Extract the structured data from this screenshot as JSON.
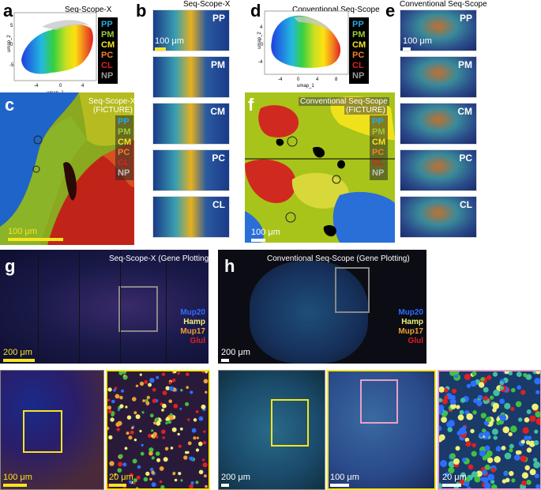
{
  "panels": {
    "a": {
      "label": "a",
      "title": "Seq-Scope-X",
      "xlabel": "umap_1",
      "ylabel": "umap_2",
      "xticks": [
        "-4",
        "0",
        "4"
      ],
      "yticks": [
        "-5",
        "0",
        "5"
      ]
    },
    "b": {
      "label": "b",
      "title": "Seq-Scope-X",
      "scalebar": "100 μm",
      "tiles": [
        "PP",
        "PM",
        "CM",
        "PC",
        "CL"
      ]
    },
    "c": {
      "label": "c",
      "title_line1": "Seq-Scope-X",
      "title_line2": "(FICTURE)",
      "scalebar": "100 μm"
    },
    "d": {
      "label": "d",
      "title": "Conventional Seq-Scope",
      "xlabel": "umap_1",
      "ylabel": "umap_2",
      "xticks": [
        "-4",
        "0",
        "4",
        "8"
      ],
      "yticks": [
        "-4",
        "0",
        "4"
      ]
    },
    "e": {
      "label": "e",
      "title": "Conventional Seq-Scope",
      "scalebar": "100 μm",
      "tiles": [
        "PP",
        "PM",
        "CM",
        "PC",
        "CL"
      ]
    },
    "f": {
      "label": "f",
      "title_line1": "Conventional Seq-Scope",
      "title_line2": "(FICTURE)",
      "scalebar": "100 μm"
    },
    "g": {
      "label": "g",
      "title": "Seq-Scope-X (Gene Plotting)",
      "scalebar": "200 μm",
      "zoom1_scalebar": "100 μm",
      "zoom2_scalebar": "20 μm"
    },
    "h": {
      "label": "h",
      "title": "Conventional Seq-Scope (Gene Plotting)",
      "scalebar": "200 μm",
      "zoom1_scalebar": "200 μm",
      "zoom2_scalebar": "100 μm",
      "zoom3_scalebar": "20 μm"
    }
  },
  "zone_legend": [
    {
      "name": "PP",
      "color": "#29a8e0"
    },
    {
      "name": "PM",
      "color": "#9ccb3b"
    },
    {
      "name": "CM",
      "color": "#f7e51e"
    },
    {
      "name": "PC",
      "color": "#f0822a"
    },
    {
      "name": "CL",
      "color": "#e02020"
    },
    {
      "name": "NP",
      "color": "#9a9a9a"
    }
  ],
  "gene_legend": [
    {
      "name": "Mup20",
      "color": "#2b6fff"
    },
    {
      "name": "Hamp",
      "color": "#f0f07a"
    },
    {
      "name": "Mup17",
      "color": "#f0a030"
    },
    {
      "name": "Glul",
      "color": "#e02020"
    }
  ]
}
